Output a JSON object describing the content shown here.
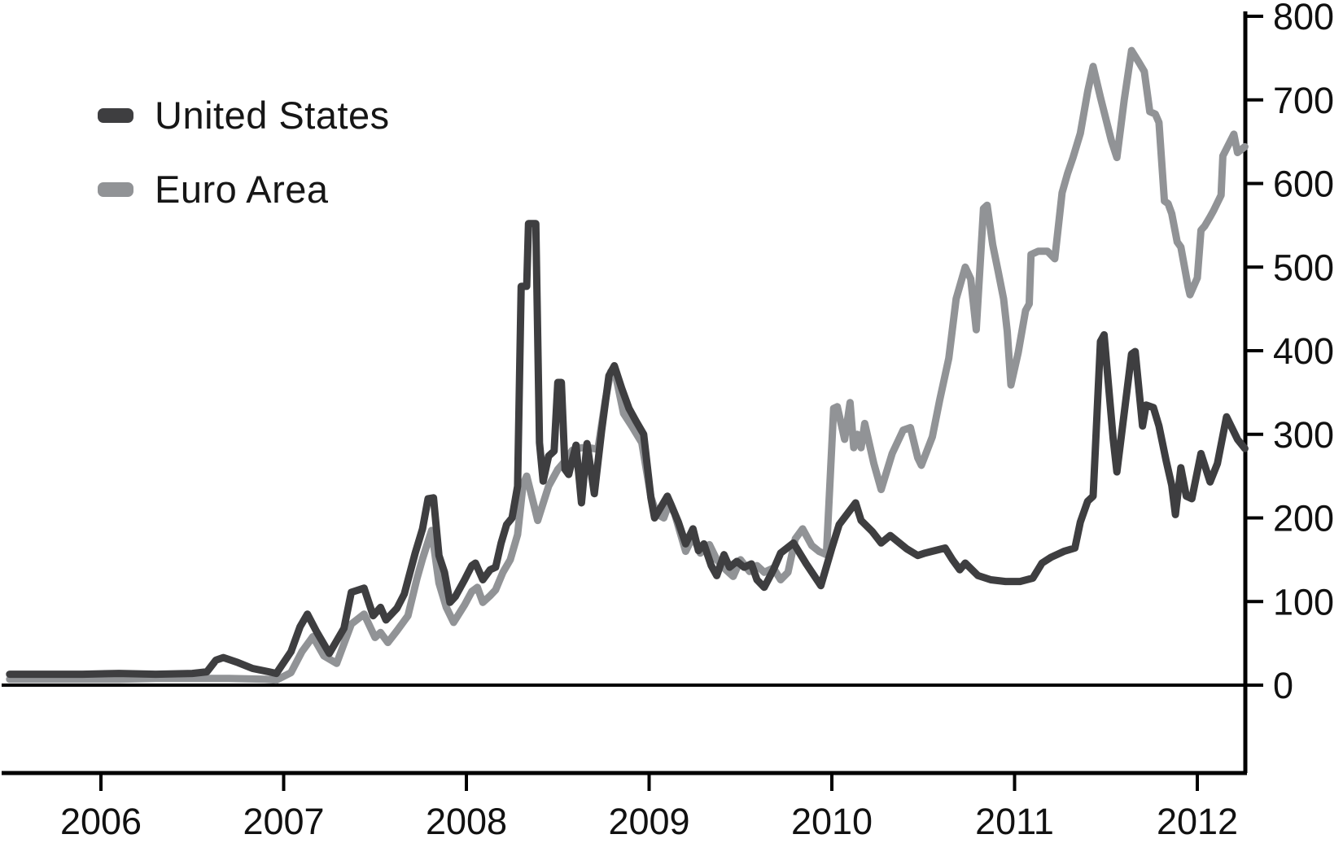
{
  "figure": {
    "background": "#ffffff",
    "axis_color": "#000000",
    "legend": {
      "items": [
        {
          "label": "United States",
          "color": "#3e3e40"
        },
        {
          "label": "Euro Area",
          "color": "#919396"
        }
      ]
    }
  },
  "chart_data": {
    "type": "line",
    "title": "",
    "xlabel": "",
    "ylabel": "",
    "grid": false,
    "legend_position": "top-left",
    "x_range": [
      2005.45,
      2012.28
    ],
    "ylim": [
      0,
      800
    ],
    "x_ticks": [
      {
        "label": "2006",
        "year": 2006
      },
      {
        "label": "2007",
        "year": 2007
      },
      {
        "label": "2008",
        "year": 2008
      },
      {
        "label": "2009",
        "year": 2009
      },
      {
        "label": "2010",
        "year": 2010
      },
      {
        "label": "2011",
        "year": 2011
      },
      {
        "label": "2012",
        "year": 2012
      }
    ],
    "y_ticks": [
      {
        "label": "0",
        "value": 0
      },
      {
        "label": "100",
        "value": 100
      },
      {
        "label": "200",
        "value": 200
      },
      {
        "label": "300",
        "value": 300
      },
      {
        "label": "400",
        "value": 400
      },
      {
        "label": "500",
        "value": 500
      },
      {
        "label": "600",
        "value": 600
      },
      {
        "label": "700",
        "value": 700
      },
      {
        "label": "800",
        "value": 800
      }
    ],
    "series": [
      {
        "name": "United States",
        "color": "#3e3e40",
        "points": [
          [
            2005.5,
            13
          ],
          [
            2005.7,
            13
          ],
          [
            2005.9,
            13
          ],
          [
            2006.1,
            14
          ],
          [
            2006.3,
            13
          ],
          [
            2006.5,
            14
          ],
          [
            2006.58,
            16
          ],
          [
            2006.63,
            30
          ],
          [
            2006.67,
            33
          ],
          [
            2006.75,
            27
          ],
          [
            2006.83,
            20
          ],
          [
            2006.92,
            16
          ],
          [
            2006.96,
            14
          ],
          [
            2007.04,
            40
          ],
          [
            2007.09,
            70
          ],
          [
            2007.13,
            85
          ],
          [
            2007.18,
            64
          ],
          [
            2007.25,
            38
          ],
          [
            2007.33,
            68
          ],
          [
            2007.37,
            111
          ],
          [
            2007.44,
            116
          ],
          [
            2007.49,
            83
          ],
          [
            2007.53,
            93
          ],
          [
            2007.56,
            78
          ],
          [
            2007.62,
            92
          ],
          [
            2007.66,
            109
          ],
          [
            2007.72,
            158
          ],
          [
            2007.76,
            187
          ],
          [
            2007.79,
            223
          ],
          [
            2007.82,
            224
          ],
          [
            2007.85,
            155
          ],
          [
            2007.88,
            135
          ],
          [
            2007.91,
            99
          ],
          [
            2007.94,
            106
          ],
          [
            2007.99,
            126
          ],
          [
            2008.03,
            143
          ],
          [
            2008.05,
            146
          ],
          [
            2008.09,
            126
          ],
          [
            2008.13,
            138
          ],
          [
            2008.16,
            141
          ],
          [
            2008.19,
            170
          ],
          [
            2008.22,
            192
          ],
          [
            2008.25,
            200
          ],
          [
            2008.28,
            238
          ],
          [
            2008.3,
            477
          ],
          [
            2008.33,
            477
          ],
          [
            2008.34,
            552
          ],
          [
            2008.38,
            552
          ],
          [
            2008.4,
            290
          ],
          [
            2008.42,
            244
          ],
          [
            2008.45,
            274
          ],
          [
            2008.48,
            280
          ],
          [
            2008.5,
            362
          ],
          [
            2008.52,
            362
          ],
          [
            2008.54,
            258
          ],
          [
            2008.56,
            252
          ],
          [
            2008.6,
            287
          ],
          [
            2008.63,
            218
          ],
          [
            2008.66,
            289
          ],
          [
            2008.7,
            229
          ],
          [
            2008.74,
            304
          ],
          [
            2008.78,
            370
          ],
          [
            2008.81,
            382
          ],
          [
            2008.85,
            355
          ],
          [
            2008.89,
            331
          ],
          [
            2008.93,
            315
          ],
          [
            2008.97,
            300
          ],
          [
            2009.01,
            224
          ],
          [
            2009.03,
            200
          ],
          [
            2009.07,
            215
          ],
          [
            2009.1,
            226
          ],
          [
            2009.12,
            216
          ],
          [
            2009.16,
            195
          ],
          [
            2009.2,
            169
          ],
          [
            2009.24,
            187
          ],
          [
            2009.27,
            161
          ],
          [
            2009.3,
            169
          ],
          [
            2009.34,
            143
          ],
          [
            2009.37,
            131
          ],
          [
            2009.41,
            156
          ],
          [
            2009.44,
            141
          ],
          [
            2009.48,
            148
          ],
          [
            2009.52,
            141
          ],
          [
            2009.56,
            145
          ],
          [
            2009.59,
            126
          ],
          [
            2009.63,
            117
          ],
          [
            2009.68,
            138
          ],
          [
            2009.72,
            158
          ],
          [
            2009.79,
            170
          ],
          [
            2009.86,
            145
          ],
          [
            2009.94,
            119
          ],
          [
            2010.0,
            164
          ],
          [
            2010.04,
            192
          ],
          [
            2010.13,
            218
          ],
          [
            2010.16,
            197
          ],
          [
            2010.22,
            184
          ],
          [
            2010.27,
            170
          ],
          [
            2010.32,
            179
          ],
          [
            2010.41,
            163
          ],
          [
            2010.47,
            155
          ],
          [
            2010.51,
            158
          ],
          [
            2010.62,
            164
          ],
          [
            2010.66,
            150
          ],
          [
            2010.7,
            138
          ],
          [
            2010.73,
            146
          ],
          [
            2010.8,
            131
          ],
          [
            2010.87,
            126
          ],
          [
            2010.95,
            124
          ],
          [
            2011.03,
            124
          ],
          [
            2011.1,
            128
          ],
          [
            2011.15,
            146
          ],
          [
            2011.2,
            153
          ],
          [
            2011.27,
            160
          ],
          [
            2011.33,
            164
          ],
          [
            2011.36,
            195
          ],
          [
            2011.4,
            220
          ],
          [
            2011.43,
            226
          ],
          [
            2011.47,
            411
          ],
          [
            2011.49,
            419
          ],
          [
            2011.54,
            294
          ],
          [
            2011.56,
            255
          ],
          [
            2011.64,
            396
          ],
          [
            2011.66,
            399
          ],
          [
            2011.7,
            310
          ],
          [
            2011.72,
            335
          ],
          [
            2011.76,
            332
          ],
          [
            2011.79,
            310
          ],
          [
            2011.83,
            268
          ],
          [
            2011.86,
            239
          ],
          [
            2011.88,
            204
          ],
          [
            2011.91,
            260
          ],
          [
            2011.94,
            226
          ],
          [
            2011.97,
            223
          ],
          [
            2012.02,
            277
          ],
          [
            2012.07,
            243
          ],
          [
            2012.11,
            265
          ],
          [
            2012.16,
            321
          ],
          [
            2012.22,
            294
          ],
          [
            2012.26,
            283
          ]
        ]
      },
      {
        "name": "Euro Area",
        "color": "#919396",
        "points": [
          [
            2005.5,
            7
          ],
          [
            2005.7,
            7
          ],
          [
            2005.9,
            7
          ],
          [
            2006.1,
            7
          ],
          [
            2006.3,
            8
          ],
          [
            2006.5,
            8
          ],
          [
            2006.7,
            8
          ],
          [
            2006.9,
            7
          ],
          [
            2006.96,
            6
          ],
          [
            2007.04,
            15
          ],
          [
            2007.1,
            40
          ],
          [
            2007.16,
            58
          ],
          [
            2007.22,
            35
          ],
          [
            2007.29,
            26
          ],
          [
            2007.37,
            73
          ],
          [
            2007.44,
            85
          ],
          [
            2007.5,
            57
          ],
          [
            2007.53,
            63
          ],
          [
            2007.57,
            51
          ],
          [
            2007.62,
            65
          ],
          [
            2007.68,
            83
          ],
          [
            2007.73,
            128
          ],
          [
            2007.76,
            151
          ],
          [
            2007.81,
            185
          ],
          [
            2007.85,
            122
          ],
          [
            2007.89,
            93
          ],
          [
            2007.93,
            75
          ],
          [
            2007.99,
            96
          ],
          [
            2008.03,
            112
          ],
          [
            2008.06,
            117
          ],
          [
            2008.09,
            99
          ],
          [
            2008.13,
            107
          ],
          [
            2008.16,
            114
          ],
          [
            2008.2,
            135
          ],
          [
            2008.24,
            150
          ],
          [
            2008.28,
            180
          ],
          [
            2008.31,
            240
          ],
          [
            2008.33,
            250
          ],
          [
            2008.37,
            215
          ],
          [
            2008.39,
            197
          ],
          [
            2008.45,
            238
          ],
          [
            2008.5,
            258
          ],
          [
            2008.54,
            268
          ],
          [
            2008.58,
            281
          ],
          [
            2008.63,
            284
          ],
          [
            2008.67,
            284
          ],
          [
            2008.72,
            282
          ],
          [
            2008.76,
            340
          ],
          [
            2008.79,
            375
          ],
          [
            2008.81,
            378
          ],
          [
            2008.86,
            325
          ],
          [
            2008.91,
            308
          ],
          [
            2008.96,
            290
          ],
          [
            2009.01,
            225
          ],
          [
            2009.04,
            205
          ],
          [
            2009.08,
            200
          ],
          [
            2009.11,
            218
          ],
          [
            2009.14,
            205
          ],
          [
            2009.2,
            160
          ],
          [
            2009.24,
            178
          ],
          [
            2009.28,
            158
          ],
          [
            2009.33,
            168
          ],
          [
            2009.37,
            150
          ],
          [
            2009.42,
            138
          ],
          [
            2009.46,
            130
          ],
          [
            2009.5,
            150
          ],
          [
            2009.55,
            136
          ],
          [
            2009.59,
            143
          ],
          [
            2009.63,
            135
          ],
          [
            2009.68,
            140
          ],
          [
            2009.72,
            126
          ],
          [
            2009.76,
            135
          ],
          [
            2009.8,
            175
          ],
          [
            2009.84,
            187
          ],
          [
            2009.89,
            167
          ],
          [
            2009.93,
            160
          ],
          [
            2009.97,
            156
          ],
          [
            2010.01,
            331
          ],
          [
            2010.03,
            333
          ],
          [
            2010.07,
            294
          ],
          [
            2010.1,
            338
          ],
          [
            2010.12,
            284
          ],
          [
            2010.14,
            300
          ],
          [
            2010.16,
            284
          ],
          [
            2010.18,
            313
          ],
          [
            2010.23,
            265
          ],
          [
            2010.27,
            234
          ],
          [
            2010.33,
            277
          ],
          [
            2010.39,
            305
          ],
          [
            2010.43,
            308
          ],
          [
            2010.47,
            272
          ],
          [
            2010.49,
            263
          ],
          [
            2010.55,
            297
          ],
          [
            2010.59,
            341
          ],
          [
            2010.64,
            391
          ],
          [
            2010.68,
            462
          ],
          [
            2010.73,
            500
          ],
          [
            2010.76,
            486
          ],
          [
            2010.79,
            425
          ],
          [
            2010.83,
            570
          ],
          [
            2010.85,
            574
          ],
          [
            2010.88,
            527
          ],
          [
            2010.91,
            495
          ],
          [
            2010.94,
            462
          ],
          [
            2010.96,
            423
          ],
          [
            2010.98,
            359
          ],
          [
            2011.02,
            398
          ],
          [
            2011.06,
            448
          ],
          [
            2011.08,
            456
          ],
          [
            2011.09,
            515
          ],
          [
            2011.13,
            519
          ],
          [
            2011.18,
            519
          ],
          [
            2011.22,
            510
          ],
          [
            2011.26,
            589
          ],
          [
            2011.29,
            612
          ],
          [
            2011.32,
            631
          ],
          [
            2011.36,
            660
          ],
          [
            2011.4,
            710
          ],
          [
            2011.43,
            740
          ],
          [
            2011.47,
            703
          ],
          [
            2011.53,
            651
          ],
          [
            2011.56,
            631
          ],
          [
            2011.6,
            700
          ],
          [
            2011.64,
            759
          ],
          [
            2011.68,
            745
          ],
          [
            2011.71,
            734
          ],
          [
            2011.74,
            686
          ],
          [
            2011.77,
            683
          ],
          [
            2011.79,
            673
          ],
          [
            2011.82,
            579
          ],
          [
            2011.84,
            576
          ],
          [
            2011.86,
            564
          ],
          [
            2011.89,
            530
          ],
          [
            2011.91,
            524
          ],
          [
            2011.95,
            476
          ],
          [
            2011.96,
            467
          ],
          [
            2012.0,
            487
          ],
          [
            2012.02,
            544
          ],
          [
            2012.04,
            549
          ],
          [
            2012.07,
            560
          ],
          [
            2012.09,
            568
          ],
          [
            2012.13,
            586
          ],
          [
            2012.14,
            633
          ],
          [
            2012.17,
            646
          ],
          [
            2012.2,
            659
          ],
          [
            2012.22,
            637
          ],
          [
            2012.26,
            644
          ]
        ]
      }
    ]
  }
}
